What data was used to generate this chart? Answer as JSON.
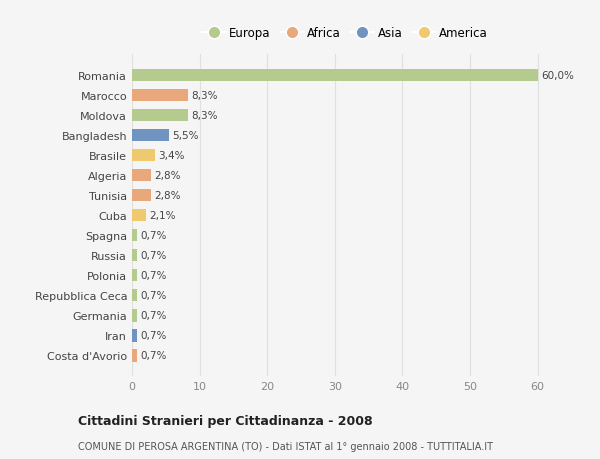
{
  "categories": [
    "Romania",
    "Marocco",
    "Moldova",
    "Bangladesh",
    "Brasile",
    "Algeria",
    "Tunisia",
    "Cuba",
    "Spagna",
    "Russia",
    "Polonia",
    "Repubblica Ceca",
    "Germania",
    "Iran",
    "Costa d'Avorio"
  ],
  "values": [
    60.0,
    8.3,
    8.3,
    5.5,
    3.4,
    2.8,
    2.8,
    2.1,
    0.7,
    0.7,
    0.7,
    0.7,
    0.7,
    0.7,
    0.7
  ],
  "labels": [
    "60,0%",
    "8,3%",
    "8,3%",
    "5,5%",
    "3,4%",
    "2,8%",
    "2,8%",
    "2,1%",
    "0,7%",
    "0,7%",
    "0,7%",
    "0,7%",
    "0,7%",
    "0,7%",
    "0,7%"
  ],
  "colors": [
    "#b5cb8e",
    "#e8a87c",
    "#b5cb8e",
    "#7093c0",
    "#f0c96e",
    "#e8a87c",
    "#e8a87c",
    "#f0c96e",
    "#b5cb8e",
    "#b5cb8e",
    "#b5cb8e",
    "#b5cb8e",
    "#b5cb8e",
    "#7093c0",
    "#e8a87c"
  ],
  "legend_labels": [
    "Europa",
    "Africa",
    "Asia",
    "America"
  ],
  "legend_colors": [
    "#b5cb8e",
    "#e8a87c",
    "#7093c0",
    "#f0c96e"
  ],
  "title": "Cittadini Stranieri per Cittadinanza - 2008",
  "subtitle": "COMUNE DI PEROSA ARGENTINA (TO) - Dati ISTAT al 1° gennaio 2008 - TUTTITALIA.IT",
  "xlim": [
    0,
    63
  ],
  "xticks": [
    0,
    10,
    20,
    30,
    40,
    50,
    60
  ],
  "background_color": "#f5f5f5",
  "grid_color": "#e0e0e0"
}
